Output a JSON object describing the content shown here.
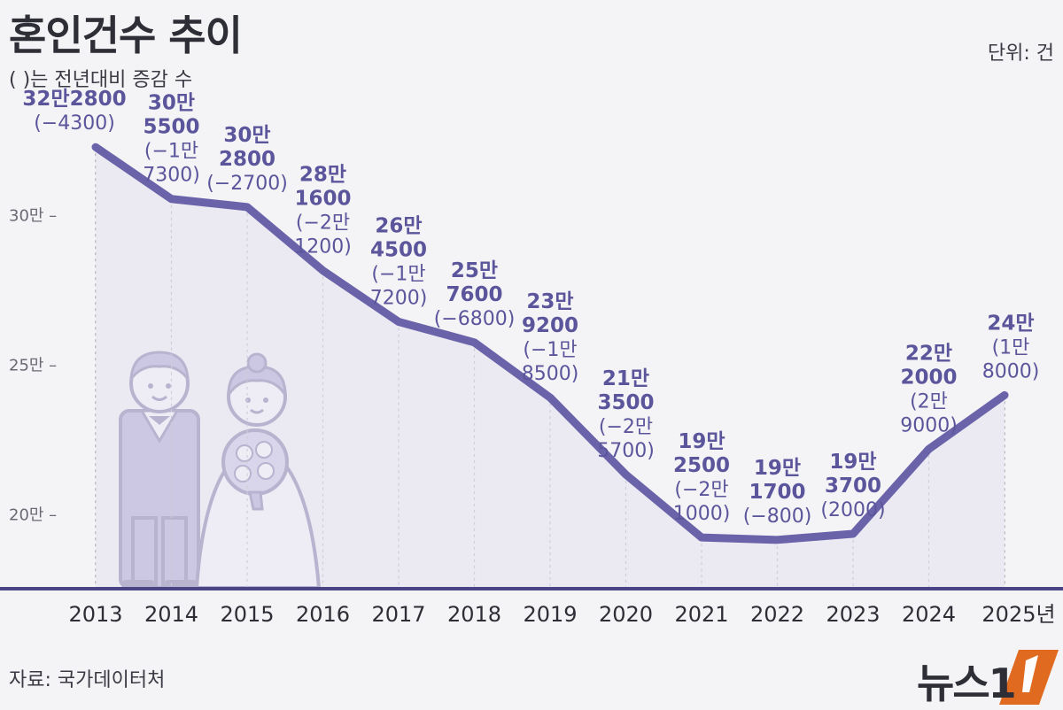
{
  "title": "혼인건수 추이",
  "subtitle": "( )는 전년대비 증감 수",
  "unit": "단위: 건",
  "source": "자료: 국가데이터처",
  "logo_text": "뉴스1",
  "colors": {
    "line": "#6a63aa",
    "label": "#5b559b",
    "fill": "#e7e4f0"
  },
  "chart_data": {
    "type": "line",
    "title": "혼인건수 추이",
    "x": [
      "2013",
      "2014",
      "2015",
      "2016",
      "2017",
      "2018",
      "2019",
      "2020",
      "2021",
      "2022",
      "2023",
      "2024",
      "2025"
    ],
    "x_tick_labels": [
      "2013",
      "2014",
      "2015",
      "2016",
      "2017",
      "2018",
      "2019",
      "2020",
      "2021",
      "2022",
      "2023",
      "2024",
      "2025년"
    ],
    "series": [
      {
        "values": [
          322800,
          305500,
          302800,
          281600,
          264500,
          257600,
          239200,
          213500,
          192500,
          191700,
          193700,
          222000,
          240000
        ],
        "value_labels": [
          [
            "32만2800"
          ],
          [
            "30만",
            "5500"
          ],
          [
            "30만",
            "2800"
          ],
          [
            "28만",
            "1600"
          ],
          [
            "26만",
            "4500"
          ],
          [
            "25만",
            "7600"
          ],
          [
            "23만",
            "9200"
          ],
          [
            "21만",
            "3500"
          ],
          [
            "19만",
            "2500"
          ],
          [
            "19만",
            "1700"
          ],
          [
            "19만",
            "3700"
          ],
          [
            "22만",
            "2000"
          ],
          [
            "24만"
          ]
        ],
        "change_labels": [
          [
            "(−4300)"
          ],
          [
            "(−1만",
            "7300)"
          ],
          [
            "(−2700)"
          ],
          [
            "(−2만",
            "1200)"
          ],
          [
            "(−1만",
            "7200)"
          ],
          [
            "(−6800)"
          ],
          [
            "(−1만",
            "8500)"
          ],
          [
            "(−2만",
            "5700)"
          ],
          [
            "(−2만",
            "1000)"
          ],
          [
            "(−800)"
          ],
          [
            "(2000)"
          ],
          [
            "(2만",
            "9000)"
          ],
          [
            "(1만",
            "8000)"
          ]
        ]
      }
    ],
    "y_ticks": [
      {
        "value": 300000,
        "label": "30만 –"
      },
      {
        "value": 250000,
        "label": "25만 –"
      },
      {
        "value": 200000,
        "label": "20만 –"
      }
    ],
    "ylim": [
      155000,
      340000
    ],
    "grid": "vertical-dashed"
  }
}
